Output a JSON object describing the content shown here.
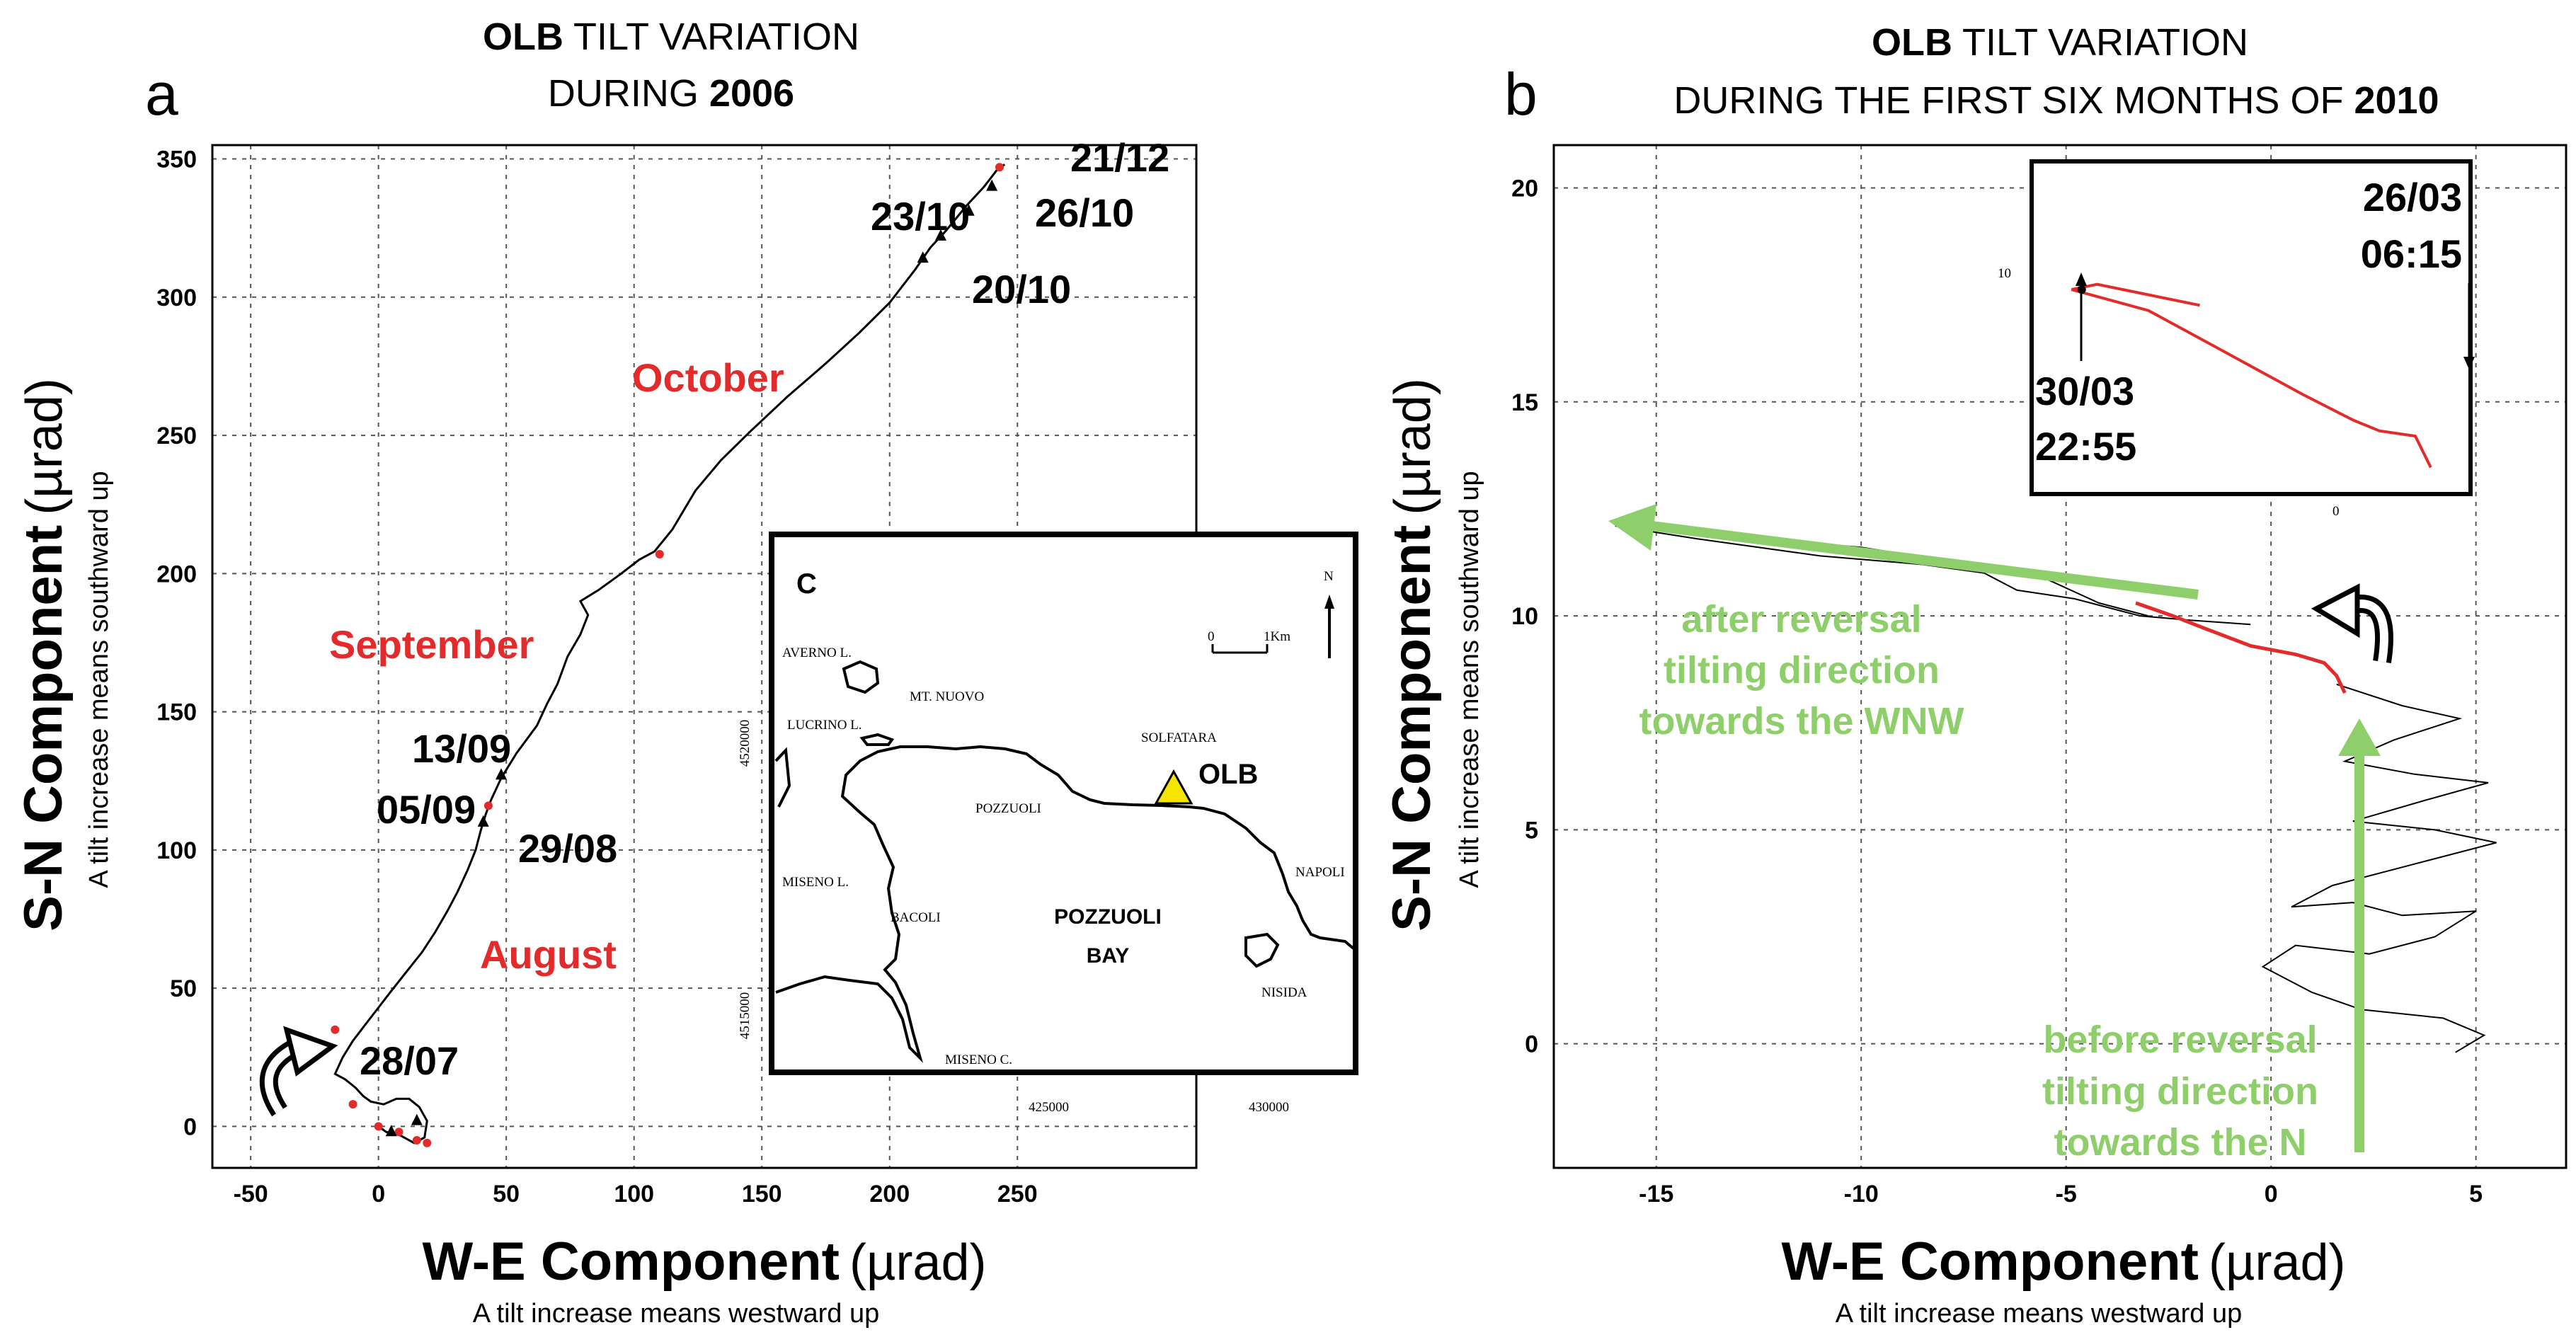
{
  "chart_data": [
    {
      "panel": "a",
      "type": "line",
      "title_bold_1": "OLB",
      "title_text_1": " TILT VARIATION",
      "title_text_2": "DURING ",
      "title_bold_2": "2006",
      "xlabel": "W-E Component",
      "xlabel_unit": "(µrad)",
      "xlabel_sub": "A tilt increase means westward up",
      "ylabel": "S-N Component",
      "ylabel_unit": "(µrad)",
      "ylabel_sub": "A tilt increase means southward up",
      "xlim": [
        -65,
        320
      ],
      "ylim": [
        -15,
        355
      ],
      "xticks": [
        -50,
        0,
        50,
        100,
        150,
        200,
        250
      ],
      "yticks": [
        0,
        50,
        100,
        150,
        200,
        250,
        300,
        350
      ],
      "grid": true,
      "series": [
        {
          "name": "2006 tilt path",
          "points": [
            [
              0,
              0
            ],
            [
              3,
              -2
            ],
            [
              8,
              -3
            ],
            [
              14,
              -6
            ],
            [
              18,
              -4
            ],
            [
              19,
              2
            ],
            [
              16,
              7
            ],
            [
              12,
              10
            ],
            [
              7,
              10
            ],
            [
              2,
              8
            ],
            [
              -3,
              9
            ],
            [
              -6,
              11
            ],
            [
              -9,
              14
            ],
            [
              -13,
              17
            ],
            [
              -17,
              19
            ],
            [
              -14,
              25
            ],
            [
              -10,
              31
            ],
            [
              -5,
              37
            ],
            [
              0,
              43
            ],
            [
              5,
              49
            ],
            [
              11,
              56
            ],
            [
              17,
              63
            ],
            [
              22,
              70
            ],
            [
              27,
              78
            ],
            [
              31,
              85
            ],
            [
              35,
              93
            ],
            [
              38,
              100
            ],
            [
              40,
              107
            ],
            [
              42,
              113
            ],
            [
              44,
              118
            ],
            [
              48,
              126
            ],
            [
              54,
              135
            ],
            [
              62,
              145
            ],
            [
              66,
              153
            ],
            [
              70,
              160
            ],
            [
              74,
              170
            ],
            [
              79,
              178
            ],
            [
              82,
              185
            ],
            [
              79,
              190
            ],
            [
              86,
              194
            ],
            [
              95,
              200
            ],
            [
              102,
              205
            ],
            [
              108,
              208
            ],
            [
              115,
              216
            ],
            [
              124,
              230
            ],
            [
              134,
              241
            ],
            [
              145,
              251
            ],
            [
              160,
              264
            ],
            [
              175,
              276
            ],
            [
              188,
              287
            ],
            [
              200,
              298
            ],
            [
              210,
              310
            ],
            [
              216,
              318
            ],
            [
              222,
              324
            ],
            [
              230,
              333
            ],
            [
              237,
              340
            ],
            [
              242,
              346
            ],
            [
              245,
              348
            ]
          ],
          "markers": [
            [
              -17,
              35
            ],
            [
              -10,
              8
            ],
            [
              0,
              0
            ],
            [
              8,
              -2
            ],
            [
              15,
              -5
            ],
            [
              19,
              -6
            ],
            [
              43,
              116
            ],
            [
              110,
              207
            ],
            [
              243,
              347
            ]
          ]
        }
      ],
      "date_annotations": [
        "21/12",
        "23/10",
        "26/10",
        "20/10",
        "13/09",
        "05/09",
        "29/08",
        "28/07"
      ],
      "month_labels": [
        "October",
        "September",
        "August"
      ],
      "inset": {
        "label": "C",
        "places": [
          "AVERNO L.",
          "MT. NUOVO",
          "LUCRINO L.",
          "SOLFATARA",
          "POZZUOLI",
          "MISENO L.",
          "BACOLI",
          "NAPOLI",
          "NISIDA",
          "MISENO C."
        ],
        "bay_line_1": "POZZUOLI",
        "bay_line_2": "BAY",
        "station": "OLB",
        "north": "N",
        "scale_0": "0",
        "scale_1": "1Km",
        "y_coord_1": "4520000",
        "y_coord_2": "4515000",
        "x_coord_1": "425000",
        "x_coord_2": "430000"
      }
    },
    {
      "panel": "b",
      "type": "line",
      "title_bold_1": "OLB",
      "title_text_1": " TILT VARIATION",
      "title_text_2": "DURING THE FIRST SIX MONTHS OF ",
      "title_bold_2": "2010",
      "xlabel": "W-E Component",
      "xlabel_unit": "(µrad)",
      "xlabel_sub": "A tilt increase means westward up",
      "ylabel": "S-N Component",
      "ylabel_unit": "(µrad)",
      "ylabel_sub": "A tilt increase means southward up",
      "xlim": [
        -17.5,
        7.2
      ],
      "ylim": [
        -2.9,
        21
      ],
      "xticks": [
        -15,
        -10,
        -5,
        0,
        5
      ],
      "yticks": [
        0,
        5,
        10,
        15,
        20
      ],
      "grid": true,
      "series": [
        {
          "name": "before reversal (black)",
          "points": [
            [
              4.5,
              -0.2
            ],
            [
              5.2,
              0.2
            ],
            [
              4.2,
              0.6
            ],
            [
              2.2,
              0.8
            ],
            [
              1.0,
              1.2
            ],
            [
              -0.2,
              1.8
            ],
            [
              0.6,
              2.3
            ],
            [
              2.4,
              2.1
            ],
            [
              4.0,
              2.5
            ],
            [
              5.0,
              3.1
            ],
            [
              3.2,
              3.0
            ],
            [
              2.0,
              3.3
            ],
            [
              0.5,
              3.2
            ],
            [
              1.5,
              3.7
            ],
            [
              3.5,
              4.2
            ],
            [
              5.5,
              4.7
            ],
            [
              4.0,
              5.0
            ],
            [
              2.0,
              5.2
            ],
            [
              3.8,
              5.7
            ],
            [
              5.3,
              6.1
            ],
            [
              3.5,
              6.3
            ],
            [
              1.8,
              6.6
            ],
            [
              3.0,
              7.1
            ],
            [
              4.6,
              7.6
            ],
            [
              3.2,
              7.9
            ],
            [
              1.6,
              8.4
            ]
          ]
        },
        {
          "name": "after reversal (black)",
          "points": [
            [
              -3.0,
              10.0
            ],
            [
              -4.2,
              10.3
            ],
            [
              -5.8,
              11.0
            ],
            [
              -8.0,
              11.3
            ],
            [
              -10.0,
              11.6
            ],
            [
              -12.5,
              11.8
            ],
            [
              -14.8,
              12.0
            ],
            [
              -16.0,
              12.1
            ],
            [
              -14.0,
              11.8
            ],
            [
              -11.0,
              11.4
            ],
            [
              -8.5,
              11.2
            ],
            [
              -7.0,
              11.0
            ],
            [
              -6.2,
              10.6
            ],
            [
              -4.8,
              10.4
            ],
            [
              -3.2,
              10.0
            ],
            [
              -2.0,
              9.9
            ],
            [
              -0.5,
              9.8
            ]
          ]
        },
        {
          "name": "reversal segment (red)",
          "points": [
            [
              -3.3,
              10.3
            ],
            [
              -2.4,
              10.0
            ],
            [
              -1.6,
              9.7
            ],
            [
              -0.5,
              9.3
            ],
            [
              0.6,
              9.1
            ],
            [
              1.3,
              8.9
            ],
            [
              1.6,
              8.6
            ],
            [
              1.8,
              8.2
            ]
          ]
        }
      ],
      "date_annotations": [
        "26/03",
        "06:15",
        "30/03",
        "22:55"
      ],
      "inset": {
        "ytick": "10",
        "xtick": "0",
        "path": [
          [
            -2.5,
            10.4
          ],
          [
            -1.0,
            10.2
          ],
          [
            0.5,
            9.8
          ],
          [
            2.0,
            9.4
          ],
          [
            3.0,
            9.15
          ],
          [
            3.5,
            9.05
          ],
          [
            4.2,
            9.0
          ],
          [
            4.5,
            8.7
          ]
        ],
        "hook": [
          [
            -2.5,
            10.4
          ],
          [
            -2.0,
            10.45
          ],
          [
            -1.0,
            10.35
          ],
          [
            0.0,
            10.25
          ]
        ]
      },
      "arrow_labels": {
        "after": [
          "after reversal",
          "tilting direction",
          "towards the WNW"
        ],
        "before": [
          "before reversal",
          "tilting direction",
          "towards the N"
        ]
      }
    }
  ],
  "panel_labels": [
    "a",
    "b"
  ],
  "colors": {
    "red": "#e32b2b",
    "green": "#8fcf6b",
    "yellow": "#f5e400",
    "line": "#000000"
  }
}
